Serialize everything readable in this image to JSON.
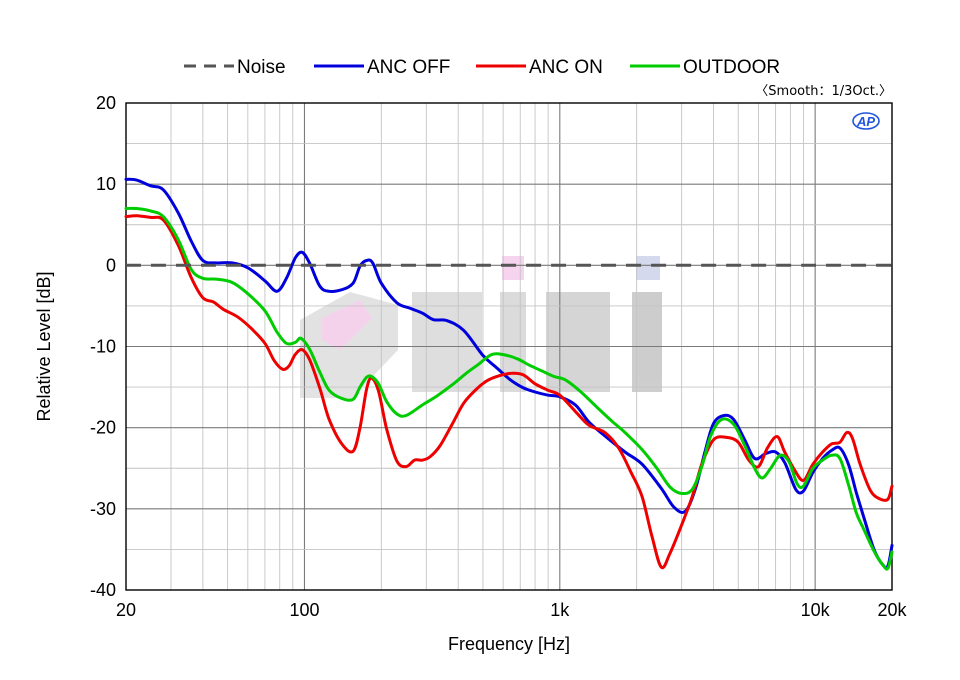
{
  "chart_data": {
    "type": "line",
    "xlabel": "Frequency [Hz]",
    "ylabel": "Relative Level [dB]",
    "xscale": "log",
    "xlim": [
      20,
      20000
    ],
    "ylim": [
      -40,
      20
    ],
    "grid": true,
    "legend_position": "top",
    "note": "〈Smooth：1/3Oct.〉",
    "logo_text": "AP",
    "x_ticks": [
      {
        "value": 20,
        "label": "20"
      },
      {
        "value": 100,
        "label": "100"
      },
      {
        "value": 1000,
        "label": "1k"
      },
      {
        "value": 10000,
        "label": "10k"
      },
      {
        "value": 20000,
        "label": "20k"
      }
    ],
    "y_ticks": [
      {
        "value": 20,
        "label": "20"
      },
      {
        "value": 10,
        "label": "10"
      },
      {
        "value": 0,
        "label": "0"
      },
      {
        "value": -10,
        "label": "-10"
      },
      {
        "value": -20,
        "label": "-20"
      },
      {
        "value": -30,
        "label": "-30"
      },
      {
        "value": -40,
        "label": "-40"
      }
    ],
    "series": [
      {
        "name": "Noise",
        "color": "#555555",
        "dashed": true,
        "points": [
          [
            20,
            0
          ],
          [
            20000,
            0
          ]
        ]
      },
      {
        "name": "ANC OFF",
        "color": "#0000dd",
        "dashed": false,
        "points": [
          [
            20,
            10.6
          ],
          [
            22,
            10.5
          ],
          [
            25,
            9.8
          ],
          [
            28,
            9.3
          ],
          [
            32,
            6.5
          ],
          [
            36,
            3
          ],
          [
            40,
            0.6
          ],
          [
            45,
            0.3
          ],
          [
            52,
            0.3
          ],
          [
            60,
            -0.3
          ],
          [
            70,
            -1.9
          ],
          [
            78,
            -3.2
          ],
          [
            85,
            -1.6
          ],
          [
            92,
            0.9
          ],
          [
            98,
            1.6
          ],
          [
            105,
            0.2
          ],
          [
            115,
            -2.6
          ],
          [
            125,
            -3.2
          ],
          [
            140,
            -3
          ],
          [
            155,
            -2.2
          ],
          [
            165,
            -0.1
          ],
          [
            175,
            0.6
          ],
          [
            185,
            0.3
          ],
          [
            200,
            -2.2
          ],
          [
            230,
            -4.6
          ],
          [
            260,
            -5.3
          ],
          [
            290,
            -5.9
          ],
          [
            320,
            -6.7
          ],
          [
            360,
            -6.8
          ],
          [
            420,
            -8
          ],
          [
            500,
            -11.1
          ],
          [
            560,
            -12.5
          ],
          [
            640,
            -14.1
          ],
          [
            720,
            -15.1
          ],
          [
            800,
            -15.6
          ],
          [
            900,
            -16
          ],
          [
            1000,
            -16.2
          ],
          [
            1150,
            -17.2
          ],
          [
            1300,
            -19.3
          ],
          [
            1500,
            -21
          ],
          [
            1800,
            -23
          ],
          [
            2100,
            -24.5
          ],
          [
            2500,
            -27.5
          ],
          [
            2800,
            -29.8
          ],
          [
            3100,
            -30.3
          ],
          [
            3400,
            -27.5
          ],
          [
            3700,
            -23
          ],
          [
            4000,
            -19.5
          ],
          [
            4400,
            -18.5
          ],
          [
            4800,
            -19
          ],
          [
            5300,
            -21.5
          ],
          [
            5800,
            -23.8
          ],
          [
            6400,
            -23.2
          ],
          [
            7000,
            -23
          ],
          [
            7600,
            -24.3
          ],
          [
            8400,
            -27.6
          ],
          [
            9000,
            -27.8
          ],
          [
            9800,
            -25.5
          ],
          [
            10700,
            -23.8
          ],
          [
            11600,
            -22.8
          ],
          [
            12500,
            -22.5
          ],
          [
            13500,
            -24.5
          ],
          [
            14500,
            -28
          ],
          [
            15500,
            -31
          ],
          [
            17000,
            -35
          ],
          [
            18500,
            -37
          ],
          [
            19300,
            -37
          ],
          [
            20000,
            -34.5
          ]
        ]
      },
      {
        "name": "ANC ON",
        "color": "#ee0000",
        "dashed": false,
        "points": [
          [
            20,
            6
          ],
          [
            22,
            6.1
          ],
          [
            25,
            5.9
          ],
          [
            28,
            5.6
          ],
          [
            32,
            2.5
          ],
          [
            36,
            -1.5
          ],
          [
            40,
            -4
          ],
          [
            44,
            -4.5
          ],
          [
            48,
            -5.4
          ],
          [
            55,
            -6.4
          ],
          [
            62,
            -7.8
          ],
          [
            70,
            -9.6
          ],
          [
            76,
            -11.7
          ],
          [
            82,
            -12.8
          ],
          [
            87,
            -12.4
          ],
          [
            92,
            -11
          ],
          [
            98,
            -10.4
          ],
          [
            105,
            -11.7
          ],
          [
            115,
            -15.2
          ],
          [
            125,
            -19
          ],
          [
            140,
            -22
          ],
          [
            155,
            -22.9
          ],
          [
            165,
            -20
          ],
          [
            175,
            -15.3
          ],
          [
            183,
            -13.9
          ],
          [
            195,
            -15.5
          ],
          [
            210,
            -20.2
          ],
          [
            230,
            -24.1
          ],
          [
            250,
            -24.8
          ],
          [
            270,
            -24
          ],
          [
            290,
            -24
          ],
          [
            310,
            -23.6
          ],
          [
            340,
            -22.2
          ],
          [
            380,
            -19.5
          ],
          [
            420,
            -17
          ],
          [
            470,
            -15.3
          ],
          [
            520,
            -14.2
          ],
          [
            580,
            -13.6
          ],
          [
            650,
            -13.3
          ],
          [
            720,
            -13.5
          ],
          [
            800,
            -14.6
          ],
          [
            900,
            -15.4
          ],
          [
            1000,
            -16
          ],
          [
            1150,
            -18
          ],
          [
            1300,
            -19.7
          ],
          [
            1500,
            -20.6
          ],
          [
            1700,
            -22.5
          ],
          [
            1900,
            -25.5
          ],
          [
            2100,
            -28.5
          ],
          [
            2300,
            -33.5
          ],
          [
            2500,
            -37.2
          ],
          [
            2700,
            -35.5
          ],
          [
            3000,
            -32
          ],
          [
            3300,
            -28.5
          ],
          [
            3600,
            -24.5
          ],
          [
            4000,
            -21.5
          ],
          [
            4500,
            -21.2
          ],
          [
            5000,
            -21.8
          ],
          [
            5500,
            -24
          ],
          [
            6000,
            -24.8
          ],
          [
            6500,
            -22.5
          ],
          [
            7100,
            -21.1
          ],
          [
            7600,
            -23
          ],
          [
            8300,
            -25.2
          ],
          [
            9000,
            -26.5
          ],
          [
            9800,
            -24.5
          ],
          [
            10700,
            -23
          ],
          [
            11600,
            -22
          ],
          [
            12500,
            -21.8
          ],
          [
            13300,
            -20.6
          ],
          [
            14000,
            -21.3
          ],
          [
            15000,
            -24.5
          ],
          [
            16500,
            -27.8
          ],
          [
            18000,
            -28.8
          ],
          [
            19300,
            -28.8
          ],
          [
            20000,
            -27.2
          ]
        ]
      },
      {
        "name": "OUTDOOR",
        "color": "#00cc00",
        "dashed": false,
        "points": [
          [
            20,
            7
          ],
          [
            22,
            7
          ],
          [
            25,
            6.7
          ],
          [
            28,
            6
          ],
          [
            32,
            3.2
          ],
          [
            36,
            -0.5
          ],
          [
            40,
            -1.6
          ],
          [
            45,
            -1.7
          ],
          [
            52,
            -2.1
          ],
          [
            60,
            -3.5
          ],
          [
            70,
            -5.6
          ],
          [
            78,
            -8.2
          ],
          [
            85,
            -9.6
          ],
          [
            92,
            -9.5
          ],
          [
            97,
            -9
          ],
          [
            105,
            -10.4
          ],
          [
            115,
            -13.2
          ],
          [
            125,
            -15.4
          ],
          [
            140,
            -16.4
          ],
          [
            155,
            -16.5
          ],
          [
            165,
            -15
          ],
          [
            175,
            -13.8
          ],
          [
            183,
            -13.7
          ],
          [
            195,
            -14.6
          ],
          [
            210,
            -16.8
          ],
          [
            230,
            -18.3
          ],
          [
            250,
            -18.5
          ],
          [
            290,
            -17.2
          ],
          [
            330,
            -16.1
          ],
          [
            380,
            -14.7
          ],
          [
            430,
            -13.3
          ],
          [
            480,
            -12.2
          ],
          [
            540,
            -11
          ],
          [
            600,
            -11
          ],
          [
            680,
            -11.5
          ],
          [
            760,
            -12.3
          ],
          [
            850,
            -13
          ],
          [
            950,
            -13.7
          ],
          [
            1050,
            -14.1
          ],
          [
            1200,
            -15.5
          ],
          [
            1400,
            -17.5
          ],
          [
            1600,
            -19.2
          ],
          [
            1800,
            -20.6
          ],
          [
            2100,
            -22.7
          ],
          [
            2400,
            -25
          ],
          [
            2700,
            -27.3
          ],
          [
            3000,
            -28.1
          ],
          [
            3300,
            -27.6
          ],
          [
            3600,
            -24.8
          ],
          [
            3900,
            -21
          ],
          [
            4300,
            -19
          ],
          [
            4800,
            -19.6
          ],
          [
            5300,
            -22.2
          ],
          [
            5800,
            -25
          ],
          [
            6200,
            -26.2
          ],
          [
            6700,
            -25
          ],
          [
            7300,
            -23.4
          ],
          [
            7900,
            -24.2
          ],
          [
            8500,
            -26.9
          ],
          [
            9000,
            -27.2
          ],
          [
            9800,
            -25
          ],
          [
            10700,
            -24
          ],
          [
            11600,
            -23.4
          ],
          [
            12500,
            -23.8
          ],
          [
            13500,
            -27
          ],
          [
            14500,
            -30.5
          ],
          [
            15500,
            -32.5
          ],
          [
            17000,
            -35.2
          ],
          [
            18500,
            -37
          ],
          [
            19300,
            -37.3
          ],
          [
            20000,
            -35.3
          ]
        ]
      }
    ]
  }
}
